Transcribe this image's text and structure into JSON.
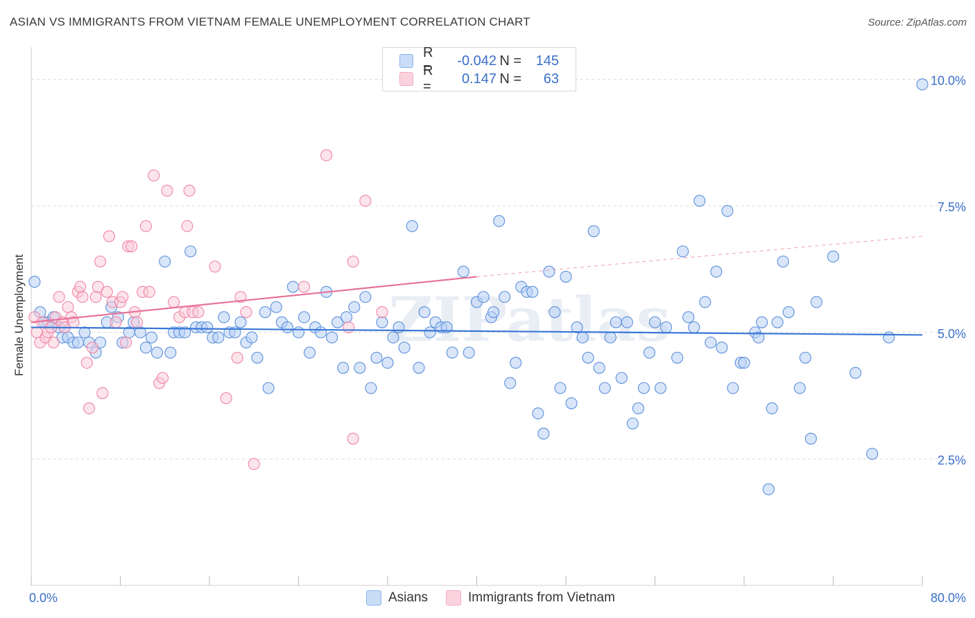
{
  "title": "ASIAN VS IMMIGRANTS FROM VIETNAM FEMALE UNEMPLOYMENT CORRELATION CHART",
  "source": "Source: ZipAtlas.com",
  "watermark": "ZIPatlas",
  "legend": {
    "rows": [
      {
        "r_label": "R =",
        "r_value": "-0.042",
        "n_label": "N =",
        "n_value": "145",
        "color": "#8ab4ef"
      },
      {
        "r_label": "R =",
        "r_value": "0.147",
        "n_label": "N =",
        "n_value": "63",
        "color": "#f4a9c0"
      }
    ]
  },
  "bottom_legend": [
    {
      "label": "Asians",
      "color": "#8ab4ef"
    },
    {
      "label": "Immigrants from Vietnam",
      "color": "#f4a9c0"
    }
  ],
  "chart_data": {
    "type": "scatter",
    "title": "ASIAN VS IMMIGRANTS FROM VIETNAM FEMALE UNEMPLOYMENT CORRELATION CHART",
    "xlabel": "",
    "ylabel": "Female Unemployment",
    "xlim": [
      0,
      80
    ],
    "ylim": [
      0,
      10.5
    ],
    "x_tick_labels": [
      "0.0%",
      "80.0%"
    ],
    "y_ticks": [
      2.5,
      5.0,
      7.5,
      10.0
    ],
    "y_tick_labels": [
      "2.5%",
      "5.0%",
      "7.5%",
      "10.0%"
    ],
    "grid": true,
    "colors": {
      "asians": "#5b8fd9",
      "asians_fill": "#b9d2f5",
      "vietnam": "#ef85a6",
      "vietnam_fill": "#f9cad8",
      "asians_line": "#3a78d6",
      "vietnam_line": "#e8729a",
      "axis_label": "#3a6fc8"
    },
    "series": [
      {
        "name": "Asians",
        "points": [
          [
            0.3,
            6.0
          ],
          [
            0.8,
            5.4
          ],
          [
            1.2,
            5.2
          ],
          [
            1.5,
            5.2
          ],
          [
            2.0,
            5.3
          ],
          [
            2.5,
            5.1
          ],
          [
            2.8,
            4.9
          ],
          [
            3.0,
            5.1
          ],
          [
            3.3,
            4.9
          ],
          [
            3.8,
            4.8
          ],
          [
            4.2,
            4.8
          ],
          [
            4.8,
            5.0
          ],
          [
            5.2,
            4.8
          ],
          [
            5.8,
            4.6
          ],
          [
            6.2,
            4.8
          ],
          [
            6.8,
            5.2
          ],
          [
            7.2,
            5.5
          ],
          [
            7.8,
            5.3
          ],
          [
            8.2,
            4.8
          ],
          [
            8.8,
            5.0
          ],
          [
            9.2,
            5.2
          ],
          [
            9.8,
            5.0
          ],
          [
            10.3,
            4.7
          ],
          [
            10.8,
            4.9
          ],
          [
            11.3,
            4.6
          ],
          [
            12.0,
            6.4
          ],
          [
            12.5,
            4.6
          ],
          [
            12.8,
            5.0
          ],
          [
            13.3,
            5.0
          ],
          [
            13.8,
            5.0
          ],
          [
            14.3,
            6.6
          ],
          [
            14.8,
            5.1
          ],
          [
            15.3,
            5.1
          ],
          [
            15.8,
            5.1
          ],
          [
            16.3,
            4.9
          ],
          [
            16.8,
            4.9
          ],
          [
            17.3,
            5.3
          ],
          [
            17.8,
            5.0
          ],
          [
            18.3,
            5.0
          ],
          [
            18.8,
            5.2
          ],
          [
            19.3,
            4.8
          ],
          [
            19.8,
            4.9
          ],
          [
            20.3,
            4.5
          ],
          [
            21.0,
            5.4
          ],
          [
            21.3,
            3.9
          ],
          [
            22.0,
            5.5
          ],
          [
            22.5,
            5.2
          ],
          [
            23.0,
            5.1
          ],
          [
            23.5,
            5.9
          ],
          [
            24.0,
            5.0
          ],
          [
            24.5,
            5.3
          ],
          [
            25.0,
            4.6
          ],
          [
            25.5,
            5.1
          ],
          [
            26.0,
            5.0
          ],
          [
            26.5,
            5.8
          ],
          [
            27.0,
            4.9
          ],
          [
            27.5,
            5.2
          ],
          [
            28.0,
            4.3
          ],
          [
            28.3,
            5.3
          ],
          [
            29.0,
            5.5
          ],
          [
            29.5,
            4.3
          ],
          [
            30.0,
            5.7
          ],
          [
            30.5,
            3.9
          ],
          [
            31.0,
            4.5
          ],
          [
            31.5,
            5.2
          ],
          [
            32.0,
            4.4
          ],
          [
            32.5,
            4.9
          ],
          [
            33.0,
            5.1
          ],
          [
            33.5,
            4.7
          ],
          [
            34.2,
            7.1
          ],
          [
            34.8,
            4.3
          ],
          [
            35.3,
            5.4
          ],
          [
            35.8,
            5.0
          ],
          [
            36.3,
            5.2
          ],
          [
            36.8,
            5.1
          ],
          [
            37.3,
            5.1
          ],
          [
            37.8,
            4.6
          ],
          [
            38.8,
            6.2
          ],
          [
            39.3,
            4.6
          ],
          [
            40.0,
            5.6
          ],
          [
            40.6,
            5.7
          ],
          [
            41.3,
            5.3
          ],
          [
            41.5,
            5.4
          ],
          [
            42.0,
            7.2
          ],
          [
            42.5,
            5.7
          ],
          [
            43.0,
            4.0
          ],
          [
            43.5,
            4.4
          ],
          [
            44.0,
            5.9
          ],
          [
            44.5,
            5.8
          ],
          [
            45.0,
            5.8
          ],
          [
            45.5,
            3.4
          ],
          [
            46.0,
            3.0
          ],
          [
            46.5,
            6.2
          ],
          [
            47.0,
            5.4
          ],
          [
            47.5,
            3.9
          ],
          [
            48.0,
            6.1
          ],
          [
            48.5,
            3.6
          ],
          [
            49.0,
            5.1
          ],
          [
            49.5,
            4.9
          ],
          [
            50.0,
            4.5
          ],
          [
            50.5,
            7.0
          ],
          [
            51.0,
            4.3
          ],
          [
            51.5,
            3.9
          ],
          [
            52.0,
            4.9
          ],
          [
            52.5,
            5.2
          ],
          [
            53.0,
            4.1
          ],
          [
            53.5,
            5.2
          ],
          [
            54.0,
            3.2
          ],
          [
            54.5,
            3.5
          ],
          [
            55.0,
            3.9
          ],
          [
            55.5,
            4.6
          ],
          [
            56.0,
            5.2
          ],
          [
            56.5,
            3.9
          ],
          [
            57.0,
            5.1
          ],
          [
            58.0,
            4.5
          ],
          [
            58.5,
            6.6
          ],
          [
            59.0,
            5.3
          ],
          [
            59.5,
            5.1
          ],
          [
            60.0,
            7.6
          ],
          [
            60.5,
            5.6
          ],
          [
            61.0,
            4.8
          ],
          [
            61.5,
            6.2
          ],
          [
            62.0,
            4.7
          ],
          [
            62.5,
            7.4
          ],
          [
            63.0,
            3.9
          ],
          [
            63.7,
            4.4
          ],
          [
            64.0,
            4.4
          ],
          [
            65.0,
            5.0
          ],
          [
            65.3,
            4.9
          ],
          [
            65.6,
            5.2
          ],
          [
            66.2,
            1.9
          ],
          [
            66.5,
            3.5
          ],
          [
            67.0,
            5.2
          ],
          [
            67.5,
            6.4
          ],
          [
            68.0,
            5.4
          ],
          [
            69.0,
            3.9
          ],
          [
            69.5,
            4.5
          ],
          [
            70.0,
            2.9
          ],
          [
            70.5,
            5.6
          ],
          [
            72.0,
            6.5
          ],
          [
            74.0,
            4.2
          ],
          [
            75.5,
            2.6
          ],
          [
            77.0,
            4.9
          ],
          [
            80.0,
            9.9
          ]
        ],
        "trend": {
          "x": [
            0,
            80
          ],
          "y": [
            5.1,
            4.95
          ]
        }
      },
      {
        "name": "Immigrants from Vietnam",
        "points": [
          [
            0.3,
            5.3
          ],
          [
            0.5,
            5.0
          ],
          [
            0.8,
            4.8
          ],
          [
            1.0,
            5.2
          ],
          [
            1.3,
            4.9
          ],
          [
            1.5,
            5.0
          ],
          [
            1.8,
            5.1
          ],
          [
            2.0,
            4.8
          ],
          [
            2.2,
            5.3
          ],
          [
            2.5,
            5.7
          ],
          [
            2.8,
            5.2
          ],
          [
            3.0,
            5.1
          ],
          [
            3.3,
            5.5
          ],
          [
            3.6,
            5.3
          ],
          [
            3.8,
            5.2
          ],
          [
            4.2,
            5.8
          ],
          [
            4.4,
            5.9
          ],
          [
            4.6,
            5.7
          ],
          [
            5.0,
            4.4
          ],
          [
            5.2,
            3.5
          ],
          [
            5.5,
            4.7
          ],
          [
            5.8,
            5.7
          ],
          [
            6.0,
            5.9
          ],
          [
            6.2,
            6.4
          ],
          [
            6.4,
            3.8
          ],
          [
            6.8,
            5.8
          ],
          [
            7.0,
            6.9
          ],
          [
            7.3,
            5.6
          ],
          [
            7.6,
            5.2
          ],
          [
            8.0,
            5.6
          ],
          [
            8.2,
            5.7
          ],
          [
            8.5,
            4.8
          ],
          [
            8.7,
            6.7
          ],
          [
            9.0,
            6.7
          ],
          [
            9.3,
            5.4
          ],
          [
            9.5,
            5.2
          ],
          [
            10.0,
            5.8
          ],
          [
            10.3,
            7.1
          ],
          [
            10.6,
            5.8
          ],
          [
            11.0,
            8.1
          ],
          [
            11.5,
            4.0
          ],
          [
            11.8,
            4.1
          ],
          [
            12.2,
            7.8
          ],
          [
            12.8,
            5.6
          ],
          [
            13.3,
            5.3
          ],
          [
            13.8,
            5.4
          ],
          [
            14.0,
            7.1
          ],
          [
            14.2,
            7.8
          ],
          [
            14.5,
            5.4
          ],
          [
            15.0,
            5.4
          ],
          [
            16.5,
            6.3
          ],
          [
            17.5,
            3.7
          ],
          [
            18.5,
            4.5
          ],
          [
            18.8,
            5.7
          ],
          [
            19.3,
            5.4
          ],
          [
            20.0,
            2.4
          ],
          [
            24.5,
            5.9
          ],
          [
            26.5,
            8.5
          ],
          [
            28.5,
            5.1
          ],
          [
            28.9,
            2.9
          ],
          [
            28.9,
            6.4
          ],
          [
            30.0,
            7.6
          ],
          [
            31.5,
            5.4
          ]
        ],
        "trend": {
          "x": [
            0,
            40
          ],
          "y": [
            5.2,
            6.1
          ],
          "dashed_extension": {
            "x": [
              40,
              80
            ],
            "y": [
              6.1,
              6.9
            ]
          }
        }
      }
    ]
  }
}
